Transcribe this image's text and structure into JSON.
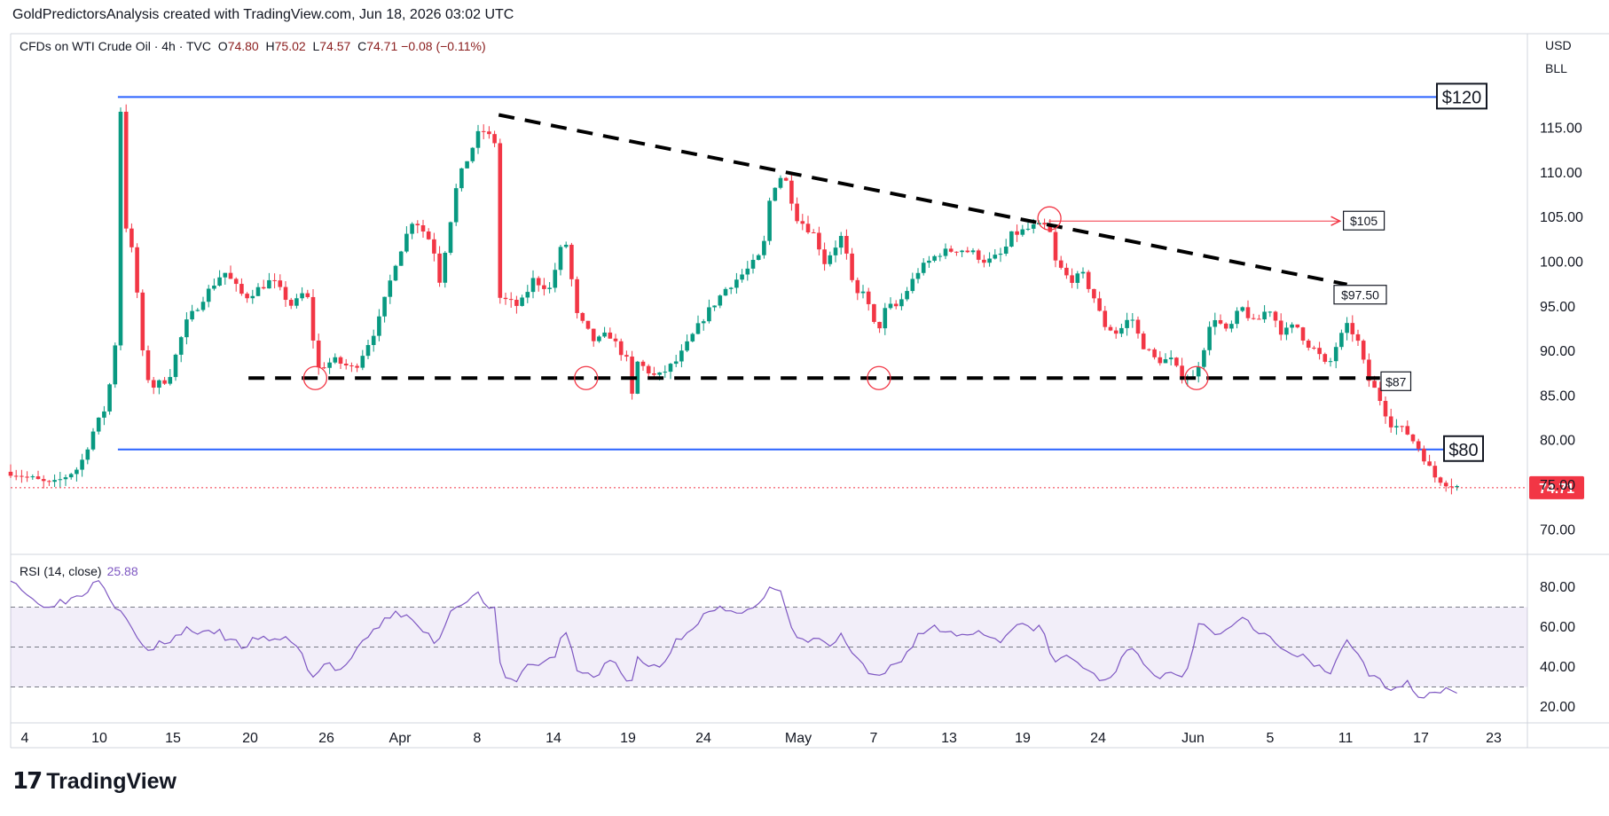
{
  "header": {
    "title": "GoldPredictorsAnalysis created with TradingView.com, Jun 18, 2026 03:02 UTC"
  },
  "legend": {
    "symbol": "CFDs on WTI Crude Oil · 4h · TVC",
    "o_label": "O",
    "o_value": "74.80",
    "h_label": "H",
    "h_value": "75.02",
    "l_label": "L",
    "l_value": "74.57",
    "c_label": "C",
    "c_value": "74.71",
    "change": "−0.08 (−0.11%)"
  },
  "currency": {
    "currency": "USD",
    "unit": "BLL"
  },
  "rsi": {
    "label": "RSI (14, close)",
    "value": "25.88"
  },
  "brand": {
    "logo": "17",
    "name": "TradingView"
  },
  "colors": {
    "up": "#089981",
    "down": "#f23645",
    "level": "#2962ff",
    "rsi": "#7e57c2",
    "last_price": "#f23645"
  },
  "chart_data": {
    "type": "candlestick",
    "symbol": "CFDs on WTI Crude Oil",
    "interval": "4h",
    "price_axis": {
      "ticks": [
        "70.00",
        "75.00",
        "80.00",
        "85.00",
        "90.00",
        "95.00",
        "100.00",
        "105.00",
        "110.00",
        "115.00"
      ],
      "range": [
        68,
        121
      ]
    },
    "rsi_axis": {
      "ticks": [
        "20.00",
        "40.00",
        "60.00",
        "80.00"
      ],
      "range": [
        16,
        97
      ],
      "bands": [
        30,
        50,
        70
      ]
    },
    "time_axis": {
      "ticks": [
        "4",
        "10",
        "15",
        "20",
        "26",
        "Apr",
        "8",
        "14",
        "19",
        "24",
        "May",
        "7",
        "13",
        "19",
        "24",
        "Jun",
        "5",
        "11",
        "17",
        "23"
      ]
    },
    "last_price": "74.71",
    "close_path": [
      [
        0,
        76.5
      ],
      [
        3,
        75
      ],
      [
        5,
        77
      ],
      [
        6,
        81
      ],
      [
        7,
        84
      ],
      [
        7.7,
        92
      ],
      [
        8,
        117
      ],
      [
        8.4,
        104
      ],
      [
        9,
        100
      ],
      [
        9.7,
        88
      ],
      [
        10.3,
        86
      ],
      [
        11.5,
        87
      ],
      [
        12.7,
        93
      ],
      [
        14,
        96
      ],
      [
        15.5,
        99
      ],
      [
        17,
        96
      ],
      [
        19,
        98
      ],
      [
        20.5,
        95
      ],
      [
        21.5,
        97
      ],
      [
        22.3,
        88
      ],
      [
        23.5,
        89
      ],
      [
        25,
        88
      ],
      [
        26.7,
        93
      ],
      [
        28,
        100
      ],
      [
        29.3,
        105
      ],
      [
        30.7,
        102
      ],
      [
        31.2,
        98
      ],
      [
        32.5,
        109
      ],
      [
        34.2,
        115
      ],
      [
        35.5,
        113
      ],
      [
        35.6,
        96
      ],
      [
        37,
        95
      ],
      [
        38,
        98
      ],
      [
        39.2,
        97
      ],
      [
        40.3,
        103
      ],
      [
        41.2,
        94
      ],
      [
        42.5,
        91
      ],
      [
        43.5,
        92
      ],
      [
        44.8,
        89
      ],
      [
        45,
        81
      ],
      [
        45.4,
        89
      ],
      [
        47,
        87
      ],
      [
        48.5,
        89
      ],
      [
        50.5,
        94
      ],
      [
        52,
        97
      ],
      [
        53.5,
        99
      ],
      [
        54.7,
        101
      ],
      [
        55.3,
        108
      ],
      [
        56.2,
        110
      ],
      [
        57.2,
        105
      ],
      [
        58.5,
        103
      ],
      [
        59.2,
        100
      ],
      [
        60.5,
        103
      ],
      [
        61.4,
        96
      ],
      [
        62,
        97
      ],
      [
        63,
        92
      ],
      [
        63.7,
        95
      ],
      [
        64.5,
        95
      ],
      [
        66,
        99
      ],
      [
        67.5,
        101
      ],
      [
        69,
        101.5
      ],
      [
        70,
        101
      ],
      [
        71,
        100
      ],
      [
        72.2,
        101
      ],
      [
        72.8,
        103
      ],
      [
        74.5,
        104
      ],
      [
        75.5,
        104
      ],
      [
        76,
        100
      ],
      [
        77,
        98
      ],
      [
        78,
        98.5
      ],
      [
        78.8,
        96
      ],
      [
        79.5,
        93
      ],
      [
        80.5,
        92
      ],
      [
        81.5,
        94
      ],
      [
        82.2,
        91
      ],
      [
        83.3,
        89
      ],
      [
        84.5,
        89
      ],
      [
        85,
        87.3
      ],
      [
        86,
        87
      ],
      [
        86.5,
        89
      ],
      [
        87.5,
        94
      ],
      [
        88.5,
        92
      ],
      [
        89.5,
        95
      ],
      [
        90.5,
        93
      ],
      [
        91.5,
        95
      ],
      [
        92.5,
        92
      ],
      [
        93.5,
        93
      ],
      [
        94.2,
        91
      ],
      [
        95,
        90
      ],
      [
        95.8,
        88
      ],
      [
        96.5,
        91
      ],
      [
        97.3,
        93
      ],
      [
        98,
        91
      ],
      [
        98.7,
        87
      ],
      [
        99.5,
        85
      ],
      [
        100.3,
        82
      ],
      [
        101.5,
        81
      ],
      [
        102.5,
        79
      ],
      [
        103.5,
        76
      ],
      [
        104.5,
        75.2
      ],
      [
        105.5,
        74.7
      ]
    ],
    "rsi_path": [
      [
        0,
        85
      ],
      [
        2,
        71
      ],
      [
        4,
        73
      ],
      [
        5.5,
        78
      ],
      [
        6.5,
        86
      ],
      [
        7.5,
        71
      ],
      [
        8.3,
        68
      ],
      [
        9,
        55
      ],
      [
        10,
        48
      ],
      [
        11,
        52
      ],
      [
        12,
        55
      ],
      [
        13,
        60
      ],
      [
        14,
        56
      ],
      [
        15,
        58
      ],
      [
        16,
        53
      ],
      [
        17,
        50
      ],
      [
        18,
        55
      ],
      [
        19,
        52
      ],
      [
        20,
        56
      ],
      [
        21,
        48
      ],
      [
        22,
        35
      ],
      [
        23,
        42
      ],
      [
        24,
        38
      ],
      [
        25,
        46
      ],
      [
        26,
        55
      ],
      [
        27,
        62
      ],
      [
        28,
        68
      ],
      [
        29,
        64
      ],
      [
        30,
        58
      ],
      [
        31,
        52
      ],
      [
        32,
        68
      ],
      [
        33,
        74
      ],
      [
        34,
        76
      ],
      [
        35.2,
        68
      ],
      [
        35.7,
        35
      ],
      [
        36.5,
        32
      ],
      [
        37.5,
        40
      ],
      [
        38.5,
        42
      ],
      [
        39.5,
        44
      ],
      [
        40.3,
        60
      ],
      [
        41.2,
        38
      ],
      [
        42.5,
        35
      ],
      [
        43.5,
        44
      ],
      [
        44.7,
        36
      ],
      [
        45,
        25
      ],
      [
        45.5,
        44
      ],
      [
        46.5,
        40
      ],
      [
        47.5,
        42
      ],
      [
        48.5,
        54
      ],
      [
        49.5,
        60
      ],
      [
        50.5,
        66
      ],
      [
        51.5,
        69
      ],
      [
        52.5,
        66
      ],
      [
        53.5,
        70
      ],
      [
        54.5,
        72
      ],
      [
        55.3,
        80
      ],
      [
        56,
        77
      ],
      [
        56.7,
        60
      ],
      [
        57.5,
        52
      ],
      [
        58.5,
        55
      ],
      [
        59.5,
        50
      ],
      [
        60.5,
        56
      ],
      [
        61.4,
        44
      ],
      [
        62,
        40
      ],
      [
        63,
        33
      ],
      [
        64,
        40
      ],
      [
        65,
        45
      ],
      [
        66,
        56
      ],
      [
        67,
        60
      ],
      [
        68,
        58
      ],
      [
        69,
        56
      ],
      [
        70,
        58
      ],
      [
        71,
        56
      ],
      [
        72,
        54
      ],
      [
        73,
        60
      ],
      [
        74,
        60
      ],
      [
        75,
        60
      ],
      [
        75.8,
        42
      ],
      [
        76.5,
        45
      ],
      [
        77.5,
        44
      ],
      [
        78.5,
        36
      ],
      [
        79.5,
        33
      ],
      [
        80.5,
        40
      ],
      [
        81.5,
        50
      ],
      [
        82.5,
        40
      ],
      [
        83.5,
        35
      ],
      [
        84.5,
        37
      ],
      [
        85.5,
        36
      ],
      [
        86.5,
        65
      ],
      [
        87.2,
        60
      ],
      [
        88,
        56
      ],
      [
        89,
        62
      ],
      [
        89.5,
        67
      ],
      [
        90.5,
        60
      ],
      [
        91.5,
        55
      ],
      [
        92.5,
        48
      ],
      [
        93.5,
        46
      ],
      [
        94.2,
        44
      ],
      [
        95,
        40
      ],
      [
        96,
        36
      ],
      [
        96.5,
        46
      ],
      [
        97.3,
        55
      ],
      [
        98,
        46
      ],
      [
        98.7,
        36
      ],
      [
        99.5,
        33
      ],
      [
        100.5,
        30
      ],
      [
        101.5,
        32
      ],
      [
        102.5,
        26
      ],
      [
        103.5,
        27
      ],
      [
        104.5,
        30
      ],
      [
        105.5,
        27
      ]
    ],
    "levels": [
      {
        "name": "upper-range",
        "price": 118.5,
        "x0": 7.8,
        "x1": 100.3,
        "label": "$120"
      },
      {
        "name": "lower-range",
        "price": 79,
        "x0": 7.8,
        "x1": 102.5,
        "label": "$80"
      }
    ],
    "dashed_lines": [
      {
        "name": "descending-trendline",
        "x0": 35.5,
        "y0": 116.5,
        "x1": 97.2,
        "y1": 97.5
      },
      {
        "name": "neckline",
        "x0": 17.3,
        "y0": 87,
        "x1": 99.6,
        "y1": 87
      }
    ],
    "target_arrow": {
      "x0": 75.5,
      "x1": 97.2,
      "price": 104.6,
      "label": "$105"
    },
    "markers": [
      {
        "x": 22.8,
        "price": 87
      },
      {
        "x": 42.5,
        "price": 87
      },
      {
        "x": 63.8,
        "price": 87
      },
      {
        "x": 76.2,
        "price": 104.9
      },
      {
        "x": 86.9,
        "price": 87
      }
    ],
    "annotations": [
      {
        "text": "$97.50",
        "x": 97.5,
        "price": 96.3
      },
      {
        "text": "$87",
        "x": 99.8,
        "price": 86.6
      }
    ]
  }
}
